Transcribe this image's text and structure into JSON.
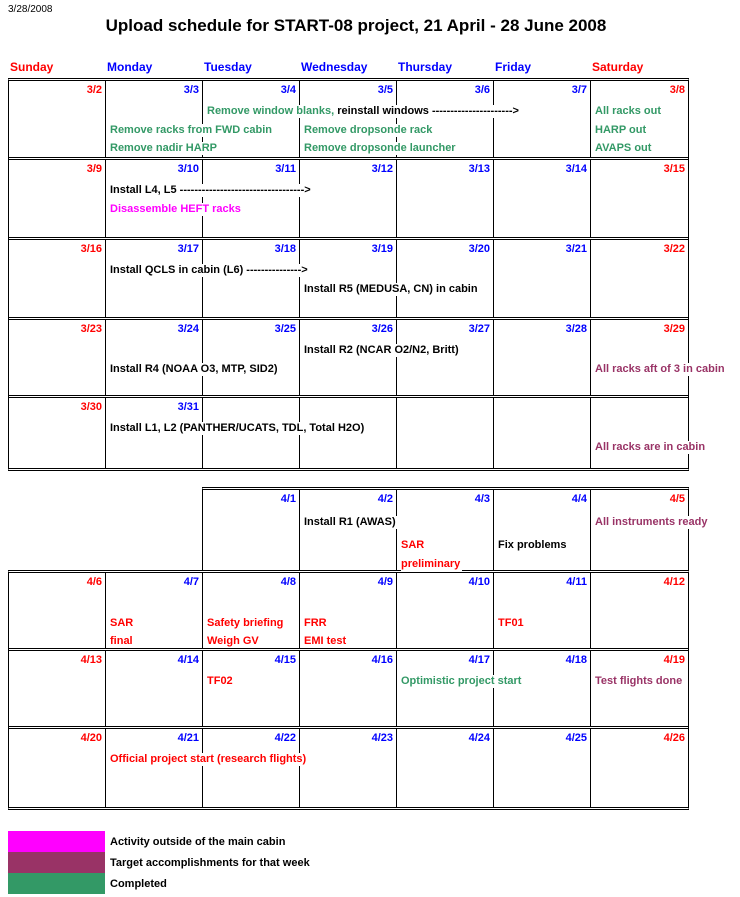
{
  "header": {
    "date_stamp": "3/28/2008",
    "title": "Upload schedule for START-08 project, 21 April - 28 June 2008"
  },
  "colors": {
    "red": "#FF0000",
    "blue": "#0000FF",
    "green": "#339966",
    "magenta": "#FF00FF",
    "plum": "#993366",
    "black": "#000000"
  },
  "day_headers": [
    {
      "label": "Sunday",
      "color": "red"
    },
    {
      "label": "Monday",
      "color": "blue"
    },
    {
      "label": "Tuesday",
      "color": "blue"
    },
    {
      "label": "Wednesday",
      "color": "blue"
    },
    {
      "label": "Thursday",
      "color": "blue"
    },
    {
      "label": "Friday",
      "color": "blue"
    },
    {
      "label": "Saturday",
      "color": "red"
    }
  ],
  "tables": [
    {
      "name": "march-weeks",
      "rows": [
        {
          "dates": [
            "3/2",
            "3/3",
            "3/4",
            "3/5",
            "3/6",
            "3/7",
            "3/8"
          ],
          "entries": [
            {
              "col": 2,
              "line": 1,
              "parts": [
                {
                  "text": "Remove window blanks,",
                  "color": "green"
                },
                {
                  "text": " reinstall windows ---------------------->",
                  "color": "black"
                }
              ]
            },
            {
              "col": 6,
              "line": 1,
              "parts": [
                {
                  "text": "All racks out",
                  "color": "green"
                }
              ]
            },
            {
              "col": 1,
              "line": 2,
              "parts": [
                {
                  "text": "Remove racks from FWD cabin",
                  "color": "green"
                }
              ]
            },
            {
              "col": 3,
              "line": 2,
              "parts": [
                {
                  "text": "Remove dropsonde rack",
                  "color": "green"
                }
              ]
            },
            {
              "col": 6,
              "line": 2,
              "parts": [
                {
                  "text": "HARP out",
                  "color": "green"
                }
              ]
            },
            {
              "col": 1,
              "line": 3,
              "parts": [
                {
                  "text": "Remove nadir HARP",
                  "color": "green"
                }
              ]
            },
            {
              "col": 3,
              "line": 3,
              "parts": [
                {
                  "text": "Remove dropsonde launcher",
                  "color": "green"
                }
              ]
            },
            {
              "col": 6,
              "line": 3,
              "parts": [
                {
                  "text": "AVAPS out",
                  "color": "green"
                }
              ]
            }
          ]
        },
        {
          "dates": [
            "3/9",
            "3/10",
            "3/11",
            "3/12",
            "3/13",
            "3/14",
            "3/15"
          ],
          "entries": [
            {
              "col": 1,
              "line": 1,
              "parts": [
                {
                  "text": "Install L4, L5 ---------------------------------->",
                  "color": "black"
                }
              ]
            },
            {
              "col": 1,
              "line": 2,
              "parts": [
                {
                  "text": "Disassemble HEFT racks",
                  "color": "magenta"
                }
              ]
            }
          ]
        },
        {
          "dates": [
            "3/16",
            "3/17",
            "3/18",
            "3/19",
            "3/20",
            "3/21",
            "3/22"
          ],
          "entries": [
            {
              "col": 1,
              "line": 1,
              "parts": [
                {
                  "text": "Install QCLS in cabin (L6) --------------->",
                  "color": "black"
                }
              ]
            },
            {
              "col": 3,
              "line": 2,
              "parts": [
                {
                  "text": "Install R5 (MEDUSA, CN) in cabin",
                  "color": "black"
                }
              ]
            }
          ]
        },
        {
          "dates": [
            "3/23",
            "3/24",
            "3/25",
            "3/26",
            "3/27",
            "3/28",
            "3/29"
          ],
          "entries": [
            {
              "col": 3,
              "line": 1,
              "parts": [
                {
                  "text": "Install R2 (NCAR O2/N2, Britt)",
                  "color": "black"
                }
              ]
            },
            {
              "col": 1,
              "line": 2,
              "parts": [
                {
                  "text": "Install R4 (NOAA O3, MTP, SID2)",
                  "color": "black"
                }
              ]
            },
            {
              "col": 6,
              "line": 2,
              "parts": [
                {
                  "text": "All racks aft of 3 in cabin",
                  "color": "plum"
                }
              ]
            }
          ]
        },
        {
          "dates": [
            "3/30",
            "3/31",
            "",
            "",
            "",
            "",
            ""
          ],
          "entries": [
            {
              "col": 1,
              "line": 1,
              "parts": [
                {
                  "text": "Install L1, L2 (PANTHER/UCATS, TDL, Total H2O)",
                  "color": "black"
                }
              ]
            },
            {
              "col": 6,
              "line": 2,
              "parts": [
                {
                  "text": "All racks are in cabin",
                  "color": "plum"
                }
              ]
            }
          ]
        }
      ]
    },
    {
      "name": "april-partial-week",
      "rows": [
        {
          "dates": [
            "4/1",
            "4/2",
            "4/3",
            "4/4",
            "4/5"
          ],
          "entries": [
            {
              "col": 1,
              "line": 1,
              "parts": [
                {
                  "text": "Install R1 (AWAS)",
                  "color": "black"
                }
              ]
            },
            {
              "col": 4,
              "line": 1,
              "parts": [
                {
                  "text": "All instruments ready",
                  "color": "plum"
                }
              ]
            },
            {
              "col": 2,
              "line": 2,
              "parts": [
                {
                  "text": "SAR",
                  "color": "red"
                }
              ]
            },
            {
              "col": 3,
              "line": 2,
              "parts": [
                {
                  "text": "Fix problems",
                  "color": "black"
                }
              ]
            },
            {
              "col": 2,
              "line": 3,
              "parts": [
                {
                  "text": "preliminary",
                  "color": "red"
                }
              ]
            }
          ]
        }
      ]
    },
    {
      "name": "april-weeks",
      "rows": [
        {
          "dates": [
            "4/6",
            "4/7",
            "4/8",
            "4/9",
            "4/10",
            "4/11",
            "4/12"
          ],
          "entries": [
            {
              "col": 1,
              "line": 2,
              "parts": [
                {
                  "text": "SAR",
                  "color": "red"
                }
              ]
            },
            {
              "col": 2,
              "line": 2,
              "parts": [
                {
                  "text": "Safety briefing",
                  "color": "red"
                }
              ]
            },
            {
              "col": 3,
              "line": 2,
              "parts": [
                {
                  "text": "FRR",
                  "color": "red"
                }
              ]
            },
            {
              "col": 5,
              "line": 2,
              "parts": [
                {
                  "text": "TF01",
                  "color": "red"
                }
              ]
            },
            {
              "col": 1,
              "line": 3,
              "parts": [
                {
                  "text": "final",
                  "color": "red"
                }
              ]
            },
            {
              "col": 2,
              "line": 3,
              "parts": [
                {
                  "text": "Weigh GV",
                  "color": "red"
                }
              ]
            },
            {
              "col": 3,
              "line": 3,
              "parts": [
                {
                  "text": "EMI test",
                  "color": "red"
                }
              ]
            }
          ]
        },
        {
          "dates": [
            "4/13",
            "4/14",
            "4/15",
            "4/16",
            "4/17",
            "4/18",
            "4/19"
          ],
          "entries": [
            {
              "col": 2,
              "line": 1,
              "parts": [
                {
                  "text": "TF02",
                  "color": "red"
                }
              ]
            },
            {
              "col": 4,
              "line": 1,
              "parts": [
                {
                  "text": "Optimistic project start",
                  "color": "green"
                }
              ]
            },
            {
              "col": 6,
              "line": 1,
              "parts": [
                {
                  "text": "Test flights done",
                  "color": "plum"
                }
              ]
            }
          ]
        },
        {
          "dates": [
            "4/20",
            "4/21",
            "4/22",
            "4/23",
            "4/24",
            "4/25",
            "4/26"
          ],
          "entries": [
            {
              "col": 1,
              "line": 1,
              "parts": [
                {
                  "text": "Official project start (research flights)",
                  "color": "red"
                }
              ]
            }
          ]
        }
      ]
    }
  ],
  "legend": [
    {
      "label": "Activity outside of the main cabin",
      "color": "magenta"
    },
    {
      "label": "Target accomplishments for that week",
      "color": "plum"
    },
    {
      "label": "Completed",
      "color": "green"
    }
  ]
}
